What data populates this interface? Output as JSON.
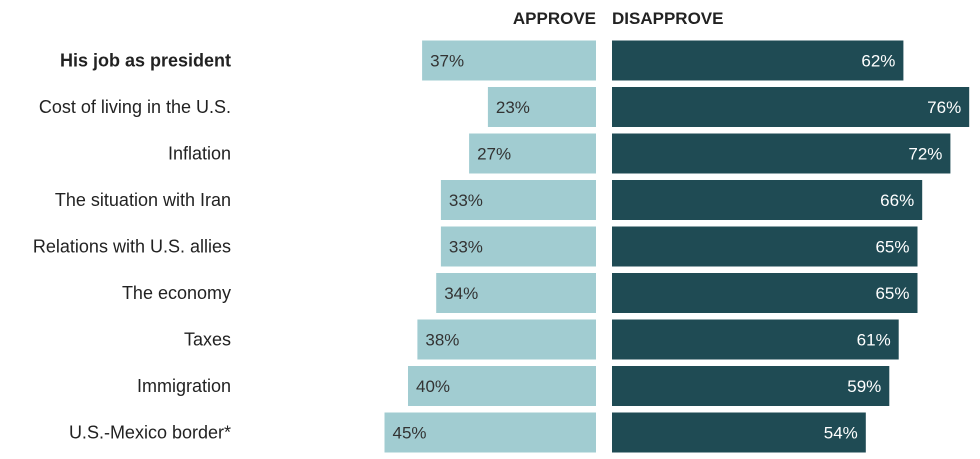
{
  "chart_data": {
    "type": "bar",
    "orientation": "diverging-horizontal",
    "headers": {
      "approve": "APPROVE",
      "disapprove": "DISAPPROVE"
    },
    "categories": [
      "His job as president",
      "Cost of living in the U.S.",
      "Inflation",
      "The situation with Iran",
      "Relations with U.S. allies",
      "The economy",
      "Taxes",
      "Immigration",
      "U.S.-Mexico border*"
    ],
    "bold_categories": [
      "His job as president"
    ],
    "series": [
      {
        "name": "APPROVE",
        "color": "#a1ccd1",
        "label_color": "#333333",
        "values": [
          37,
          23,
          27,
          33,
          33,
          34,
          38,
          40,
          45
        ],
        "labels": [
          "37%",
          "23%",
          "27%",
          "33%",
          "33%",
          "34%",
          "38%",
          "40%",
          "45%"
        ]
      },
      {
        "name": "DISAPPROVE",
        "color": "#1f4b54",
        "label_color": "#ffffff",
        "values": [
          62,
          76,
          72,
          66,
          65,
          65,
          61,
          59,
          54
        ],
        "labels": [
          "62%",
          "76%",
          "72%",
          "66%",
          "65%",
          "65%",
          "61%",
          "59%",
          "54%"
        ]
      }
    ]
  }
}
